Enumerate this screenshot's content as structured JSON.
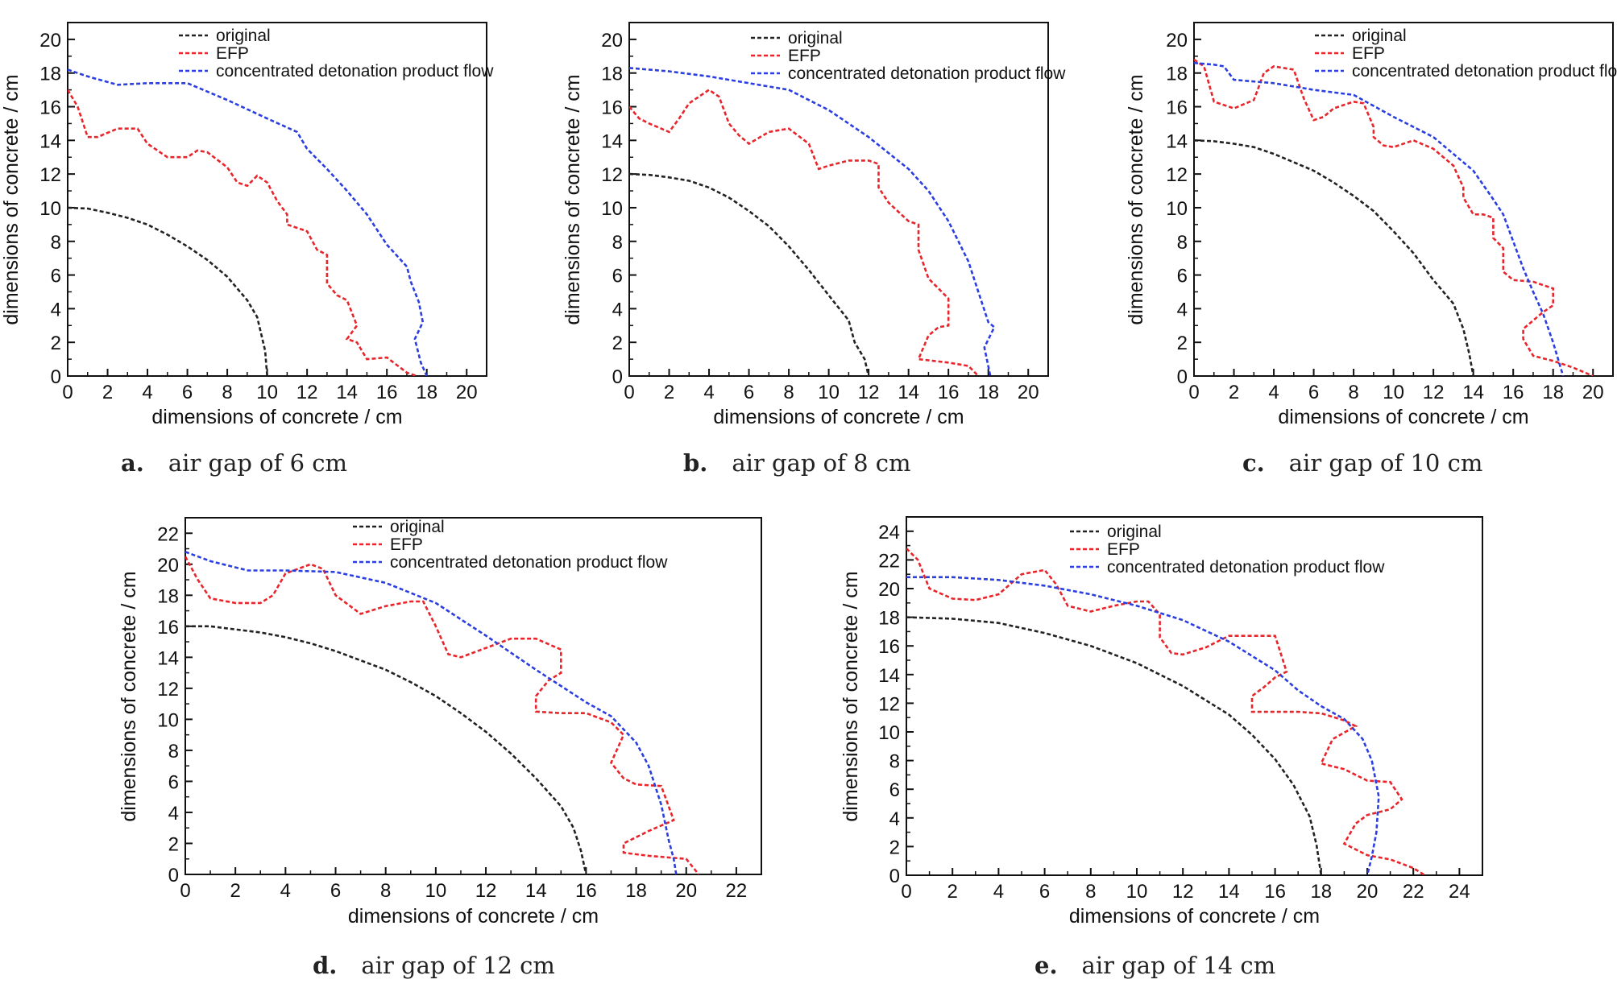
{
  "figure": {
    "panels": [
      {
        "letter": "a.",
        "caption": "air gap of 6 cm"
      },
      {
        "letter": "b.",
        "caption": "air gap of 8 cm"
      },
      {
        "letter": "c.",
        "caption": "air gap of 10 cm"
      },
      {
        "letter": "d.",
        "caption": "air gap of 12 cm"
      },
      {
        "letter": "e.",
        "caption": "air gap of 14 cm"
      }
    ]
  },
  "colors": {
    "original": "#222222",
    "EFP": "#e8252b",
    "flow": "#2b3fe0"
  },
  "chart_data": [
    {
      "type": "line",
      "title": "",
      "xlabel": "dimensions of concrete / cm",
      "ylabel": "dimensions of concrete / cm",
      "xlim": [
        0,
        21
      ],
      "ylim": [
        0,
        21
      ],
      "xticks": [
        0,
        2,
        4,
        6,
        8,
        10,
        12,
        14,
        16,
        18,
        20
      ],
      "yticks": [
        0,
        2,
        4,
        6,
        8,
        10,
        12,
        14,
        16,
        18,
        20
      ],
      "legend": "top-center",
      "series": [
        {
          "name": "original",
          "x": [
            0,
            1,
            2,
            3,
            4,
            5,
            6,
            7,
            8,
            9,
            9.5,
            9.9,
            10
          ],
          "y": [
            10,
            9.95,
            9.7,
            9.4,
            9.0,
            8.4,
            7.7,
            6.9,
            5.9,
            4.5,
            3.5,
            1.5,
            0
          ]
        },
        {
          "name": "EFP",
          "x": [
            0,
            0.5,
            1,
            1.5,
            2.5,
            3.5,
            4,
            5,
            6,
            6.5,
            7,
            8,
            8.5,
            9,
            9.5,
            10,
            10.5,
            11,
            11,
            11.5,
            12,
            12.5,
            13,
            13,
            13.5,
            14,
            14.5,
            14,
            14.5,
            15,
            16,
            17,
            17.5
          ],
          "y": [
            17,
            16,
            14.2,
            14.2,
            14.7,
            14.7,
            13.8,
            13,
            13,
            13.4,
            13.3,
            12.4,
            11.5,
            11.3,
            11.9,
            11.5,
            10.4,
            9.6,
            9,
            8.8,
            8.6,
            7.5,
            7.2,
            5.5,
            4.8,
            4.5,
            3,
            2.2,
            2,
            1,
            1.1,
            0.2,
            0
          ]
        },
        {
          "name": "concentrated detonation product flow",
          "x": [
            0,
            1,
            2.5,
            4,
            6,
            8,
            10,
            11.5,
            12,
            13,
            14,
            15,
            16,
            17,
            17.2,
            17.6,
            17.8,
            17.4,
            17.7,
            18
          ],
          "y": [
            18.2,
            17.8,
            17.3,
            17.4,
            17.4,
            16.4,
            15.3,
            14.5,
            13.5,
            12.3,
            11,
            9.6,
            7.8,
            6.5,
            5.6,
            4.4,
            3.2,
            2.2,
            0.8,
            0
          ]
        }
      ]
    },
    {
      "type": "line",
      "title": "",
      "xlabel": "dimensions of concrete / cm",
      "ylabel": "dimensions of concrete / cm",
      "xlim": [
        0,
        21
      ],
      "ylim": [
        0,
        21
      ],
      "xticks": [
        0,
        2,
        4,
        6,
        8,
        10,
        12,
        14,
        16,
        18,
        20
      ],
      "yticks": [
        0,
        2,
        4,
        6,
        8,
        10,
        12,
        14,
        16,
        18,
        20
      ],
      "legend": "top-right",
      "series": [
        {
          "name": "original",
          "x": [
            0,
            1,
            2,
            3,
            4,
            5,
            6,
            7,
            8,
            9,
            10,
            11,
            11.3,
            11.8,
            12
          ],
          "y": [
            12,
            11.95,
            11.8,
            11.6,
            11.2,
            10.6,
            9.8,
            8.9,
            7.7,
            6.3,
            4.8,
            3.3,
            2,
            1,
            0
          ]
        },
        {
          "name": "EFP",
          "x": [
            0,
            0.5,
            1,
            2,
            2.5,
            3,
            4,
            4.5,
            5,
            5.5,
            6,
            7,
            8,
            9,
            9.5,
            10,
            11,
            12,
            12.5,
            12.5,
            13,
            14,
            14.5,
            14.5,
            15,
            15.5,
            16,
            16,
            15.5,
            15,
            14.5,
            16,
            17,
            17.5
          ],
          "y": [
            16,
            15.3,
            15,
            14.5,
            15.3,
            16.2,
            17,
            16.6,
            15,
            14.3,
            13.8,
            14.5,
            14.7,
            13.8,
            12.3,
            12.5,
            12.8,
            12.8,
            12.6,
            11.2,
            10.3,
            9.2,
            9,
            7.5,
            5.8,
            5.2,
            4.6,
            3,
            2.9,
            2.4,
            1,
            0.8,
            0.6,
            0
          ]
        },
        {
          "name": "concentrated detonation product flow",
          "x": [
            0,
            2,
            4,
            6,
            8,
            10,
            12,
            14,
            15,
            16,
            17,
            17.5,
            18,
            18.3,
            17.8,
            18.1
          ],
          "y": [
            18.3,
            18.1,
            17.8,
            17.4,
            17,
            15.8,
            14.2,
            12.3,
            11,
            9.2,
            6.8,
            5,
            3.2,
            2.9,
            1.7,
            0
          ]
        }
      ]
    },
    {
      "type": "line",
      "title": "",
      "xlabel": "dimensions of concrete / cm",
      "ylabel": "dimensions of concrete / cm",
      "xlim": [
        0,
        21
      ],
      "ylim": [
        0,
        21
      ],
      "xticks": [
        0,
        2,
        4,
        6,
        8,
        10,
        12,
        14,
        16,
        18,
        20
      ],
      "yticks": [
        0,
        2,
        4,
        6,
        8,
        10,
        12,
        14,
        16,
        18,
        20
      ],
      "legend": "top-right",
      "series": [
        {
          "name": "original",
          "x": [
            0,
            1,
            2,
            3,
            4,
            5,
            6,
            7,
            8,
            9,
            10,
            11,
            12,
            13,
            13.5,
            13.8,
            14
          ],
          "y": [
            14,
            13.95,
            13.8,
            13.6,
            13.2,
            12.7,
            12.2,
            11.5,
            10.7,
            9.8,
            8.6,
            7.3,
            5.7,
            4.3,
            2.8,
            1.3,
            0
          ]
        },
        {
          "name": "EFP",
          "x": [
            0,
            0.5,
            1,
            2,
            3,
            3.5,
            4,
            5,
            5.5,
            6,
            6.5,
            7,
            8,
            8.5,
            9,
            9,
            9.5,
            10,
            11,
            12,
            12.5,
            13,
            13.5,
            13.5,
            14,
            14.5,
            15,
            15,
            15.5,
            15.5,
            16,
            17,
            18,
            18,
            17.5,
            16.5,
            16.5,
            17,
            18,
            19,
            20
          ],
          "y": [
            18.8,
            18.4,
            16.3,
            15.9,
            16.4,
            18,
            18.4,
            18.2,
            16.5,
            15.2,
            15.4,
            15.9,
            16.3,
            16.2,
            14.8,
            14.2,
            13.7,
            13.6,
            14,
            13.5,
            13,
            12.5,
            11.2,
            10.6,
            9.6,
            9.6,
            9.4,
            8.2,
            7.6,
            6.2,
            5.7,
            5.6,
            5.2,
            4.2,
            3.8,
            2.8,
            2.2,
            1.2,
            0.9,
            0.5,
            0
          ]
        },
        {
          "name": "concentrated detonation product flow",
          "x": [
            0,
            1,
            1.5,
            2,
            4,
            6,
            8,
            10,
            12,
            14,
            15,
            15.5,
            16,
            16.5,
            17,
            17.5,
            18,
            18.5
          ],
          "y": [
            18.6,
            18.5,
            18.4,
            17.6,
            17.4,
            17,
            16.7,
            15.4,
            14.2,
            12.2,
            10.5,
            9.6,
            8,
            6.4,
            5,
            3.7,
            2,
            0
          ]
        }
      ]
    },
    {
      "type": "line",
      "title": "",
      "xlabel": "dimensions of concrete / cm",
      "ylabel": "dimensions of concrete / cm",
      "xlim": [
        0,
        23
      ],
      "ylim": [
        0,
        23
      ],
      "xticks": [
        0,
        2,
        4,
        6,
        8,
        10,
        12,
        14,
        16,
        18,
        20,
        22
      ],
      "yticks": [
        0,
        2,
        4,
        6,
        8,
        10,
        12,
        14,
        16,
        18,
        20,
        22
      ],
      "legend": "top-center",
      "series": [
        {
          "name": "original",
          "x": [
            0,
            1,
            2,
            3,
            4,
            5,
            6,
            7,
            8,
            9,
            10,
            11,
            12,
            13,
            14,
            15,
            15.5,
            15.8,
            16
          ],
          "y": [
            16,
            16,
            15.8,
            15.6,
            15.3,
            14.9,
            14.4,
            13.8,
            13.2,
            12.4,
            11.5,
            10.4,
            9.2,
            7.8,
            6.2,
            4.4,
            3,
            1.5,
            0
          ]
        },
        {
          "name": "EFP",
          "x": [
            0,
            0.5,
            1,
            2,
            3,
            3.5,
            4,
            5,
            5.5,
            6,
            7,
            8,
            9,
            9.5,
            10,
            10.5,
            11,
            12,
            13,
            14,
            15,
            15,
            14.5,
            14,
            14,
            15,
            16,
            17,
            17.5,
            17,
            17.5,
            18,
            19,
            19.5,
            18.5,
            17.5,
            17.5,
            18.5,
            20,
            20.5
          ],
          "y": [
            20.5,
            19,
            17.8,
            17.5,
            17.5,
            18,
            19.4,
            20,
            19.7,
            18,
            16.8,
            17.3,
            17.6,
            17.6,
            16,
            14.2,
            14,
            14.6,
            15.2,
            15.2,
            14.5,
            13,
            12.5,
            11.5,
            10.5,
            10.4,
            10.4,
            9.8,
            9,
            7.2,
            6.2,
            5.8,
            5.7,
            3.5,
            2.8,
            2,
            1.4,
            1.2,
            1,
            0
          ]
        },
        {
          "name": "concentrated detonation product flow",
          "x": [
            0,
            1,
            2.5,
            4,
            6,
            8,
            10,
            12,
            14,
            16,
            17,
            18,
            18.5,
            19,
            19.3,
            19.5,
            19.6
          ],
          "y": [
            20.8,
            20.2,
            19.6,
            19.6,
            19.5,
            18.8,
            17.5,
            15.4,
            13.2,
            11.1,
            10.2,
            8.5,
            7,
            4.5,
            2.2,
            1,
            0
          ]
        }
      ]
    },
    {
      "type": "line",
      "title": "",
      "xlabel": "dimensions of concrete / cm",
      "ylabel": "dimensions of concrete / cm",
      "xlim": [
        0,
        25
      ],
      "ylim": [
        0,
        25
      ],
      "xticks": [
        0,
        2,
        4,
        6,
        8,
        10,
        12,
        14,
        16,
        18,
        20,
        22,
        24
      ],
      "yticks": [
        0,
        2,
        4,
        6,
        8,
        10,
        12,
        14,
        16,
        18,
        20,
        22,
        24
      ],
      "legend": "top-center",
      "series": [
        {
          "name": "original",
          "x": [
            0,
            2,
            4,
            6,
            8,
            10,
            12,
            14,
            15,
            16,
            16.8,
            17.5,
            17.8,
            18
          ],
          "y": [
            18,
            17.9,
            17.6,
            16.9,
            16,
            14.8,
            13.2,
            11.2,
            9.8,
            8.1,
            6.3,
            4.1,
            2.1,
            0
          ]
        },
        {
          "name": "EFP",
          "x": [
            0,
            0.5,
            1,
            2,
            3,
            4,
            5,
            6,
            6.5,
            7,
            8,
            9,
            10,
            10.5,
            11,
            11,
            11.5,
            12,
            13,
            14,
            15,
            16,
            16.5,
            16,
            15.5,
            15,
            15,
            16,
            17,
            18,
            19,
            19.5,
            18.5,
            18,
            19,
            20,
            21,
            21.5,
            21,
            20,
            19.5,
            19,
            20,
            21,
            22,
            22.5
          ],
          "y": [
            22.8,
            22,
            20,
            19.3,
            19.2,
            19.6,
            21,
            21.3,
            20.3,
            18.8,
            18.4,
            18.8,
            19.1,
            19.1,
            18.2,
            16.6,
            15.5,
            15.4,
            15.9,
            16.7,
            16.7,
            16.7,
            14.2,
            13.8,
            13.1,
            12.5,
            11.4,
            11.4,
            11.4,
            11.3,
            10.8,
            10.4,
            9.5,
            7.8,
            7.4,
            6.6,
            6.5,
            5.3,
            4.6,
            4.2,
            3.6,
            2.2,
            1.4,
            1.1,
            0.5,
            0
          ]
        },
        {
          "name": "concentrated detonation product flow",
          "x": [
            0,
            2,
            4,
            6,
            8,
            10,
            12,
            14,
            16,
            17,
            18,
            19,
            19.8,
            20.2,
            20.5,
            20.4,
            20.2,
            20
          ],
          "y": [
            20.8,
            20.8,
            20.6,
            20.2,
            19.6,
            18.8,
            17.8,
            16.3,
            14.3,
            12.9,
            11.8,
            10.9,
            9.5,
            8,
            5.5,
            3,
            1.3,
            0
          ]
        }
      ]
    }
  ]
}
